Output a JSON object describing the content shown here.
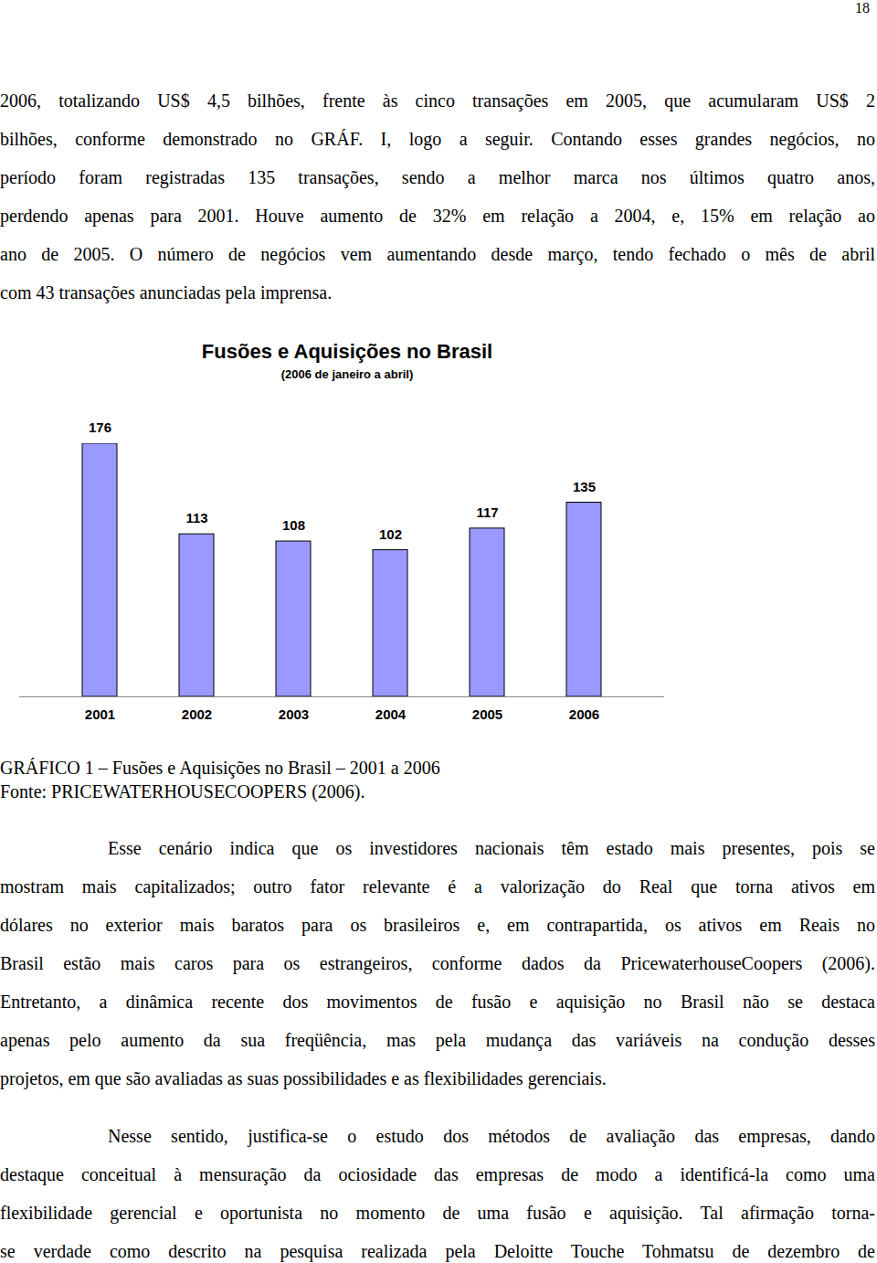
{
  "page_number": "18",
  "paragraphs_before": [
    [
      "2006, totalizando US$ 4,5 bilhões, frente às cinco transações em 2005, que acumularam US$ 2",
      "bilhões, conforme demonstrado no GRÁF. I, logo a seguir. Contando esses grandes negócios, no",
      "período foram registradas 135 transações, sendo a melhor marca nos últimos quatro anos,",
      "perdendo apenas para 2001. Houve aumento de 32% em relação a 2004, e, 15% em relação ao",
      "ano de 2005. O número de negócios vem aumentando desde março, tendo fechado o mês de abril",
      "com 43 transações anunciadas pela imprensa."
    ]
  ],
  "chart_data": {
    "type": "bar",
    "title": "Fusões e Aquisições no Brasil",
    "subtitle": "(2006 de janeiro a abril)",
    "categories": [
      "2001",
      "2002",
      "2003",
      "2004",
      "2005",
      "2006"
    ],
    "values": [
      176,
      113,
      108,
      102,
      117,
      135
    ],
    "color": "#9999ff",
    "ylim": [
      0,
      176
    ],
    "yticks": [],
    "grid": false,
    "data_labels": true,
    "tick_labels": "x"
  },
  "caption": "GRÁFICO 1 – Fusões e Aquisições no Brasil – 2001 a 2006",
  "source": "Fonte: PRICEWATERHOUSECOOPERS (2006).",
  "paragraphs_after": [
    [
      "Esse cenário indica que os investidores nacionais têm estado mais presentes, pois se",
      "mostram mais capitalizados; outro fator relevante é a valorização do Real que torna ativos em",
      "dólares no exterior mais baratos para os brasileiros e, em contrapartida, os ativos em Reais no",
      "Brasil estão mais caros para os estrangeiros, conforme dados da PricewaterhouseCoopers (2006).",
      "Entretanto, a dinâmica recente dos movimentos de fusão e aquisição no Brasil não se destaca",
      "apenas pelo aumento da sua freqüência, mas pela mudança das variáveis na condução desses",
      "projetos, em que são avaliadas as suas possibilidades e as flexibilidades gerenciais."
    ],
    [
      "Nesse sentido, justifica-se o estudo dos métodos de avaliação das empresas, dando",
      "destaque conceitual à mensuração da ociosidade das empresas de modo a identificá-la como uma",
      "flexibilidade gerencial e oportunista no momento de uma fusão e aquisição. Tal afirmação torna-",
      "se verdade como descrito na pesquisa realizada pela Deloitte Touche Tohmatsu de dezembro de"
    ]
  ]
}
